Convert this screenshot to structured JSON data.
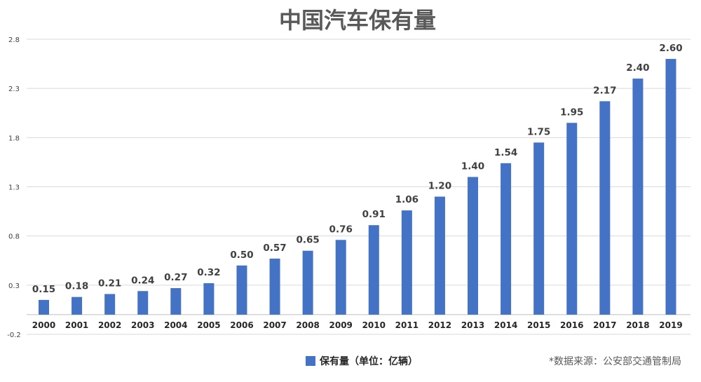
{
  "chart_data": {
    "type": "bar",
    "title": "中国汽车保有量",
    "categories": [
      "2000",
      "2001",
      "2002",
      "2003",
      "2004",
      "2005",
      "2006",
      "2007",
      "2008",
      "2009",
      "2010",
      "2011",
      "2012",
      "2013",
      "2014",
      "2015",
      "2016",
      "2017",
      "2018",
      "2019"
    ],
    "series": [
      {
        "name": "保有量（单位：亿辆）",
        "values": [
          0.15,
          0.18,
          0.21,
          0.24,
          0.27,
          0.32,
          0.5,
          0.57,
          0.65,
          0.76,
          0.91,
          1.06,
          1.2,
          1.4,
          1.54,
          1.75,
          1.95,
          2.17,
          2.4,
          2.6
        ],
        "labels": [
          "0.15",
          "0.18",
          "0.21",
          "0.24",
          "0.27",
          "0.32",
          "0.50",
          "0.57",
          "0.65",
          "0.76",
          "0.91",
          "1.06",
          "1.20",
          "1.40",
          "1.54",
          "1.75",
          "1.95",
          "2.17",
          "2.40",
          "2.60"
        ]
      }
    ],
    "ylim": [
      -0.2,
      2.8
    ],
    "yticks": [
      "2.8",
      "2.3",
      "1.8",
      "1.3",
      "0.8",
      "0.3",
      "-0.2"
    ],
    "grid": true,
    "legend_position": "bottom",
    "source_note": "*数据来源：公安部交通管制局",
    "colors": {
      "bar": "#4472c4",
      "grid": "#d9d9d9",
      "baseline": "#bfbfbf"
    }
  }
}
